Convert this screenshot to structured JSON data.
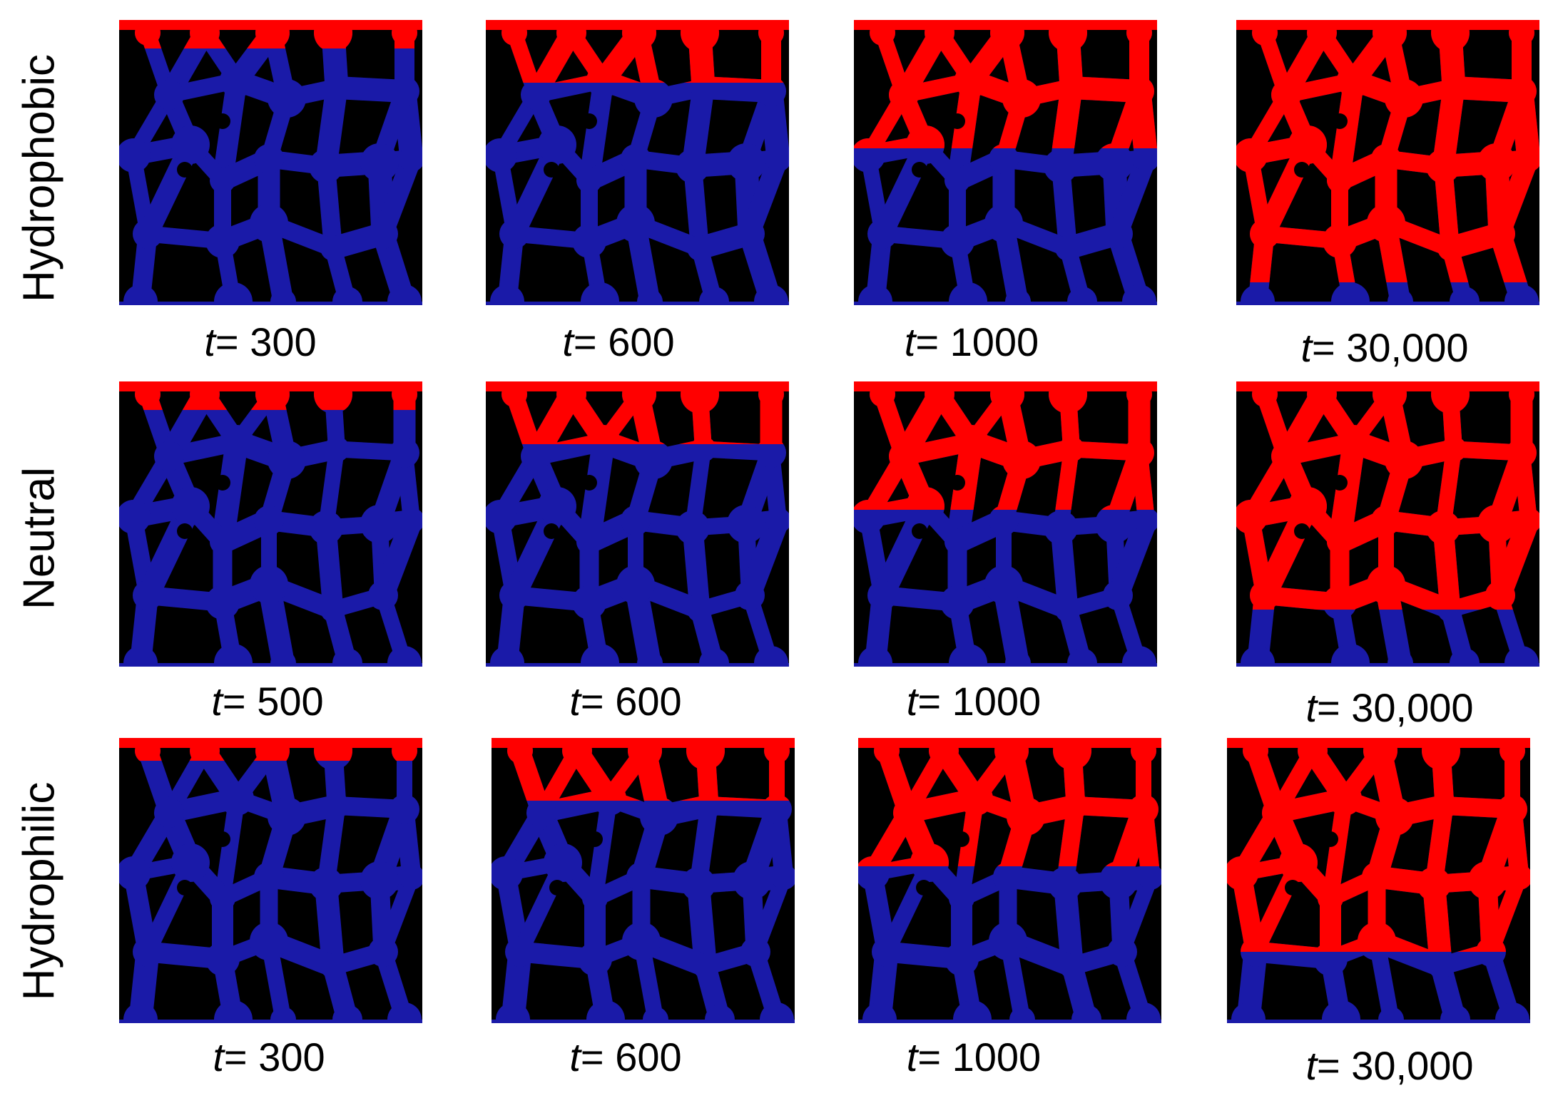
{
  "legend_colors": {
    "invading_phase": "#ff0000",
    "defending_phase": "#1a1aa8",
    "solid_grain": "#000000"
  },
  "rows": [
    {
      "label": "Hydrophobic",
      "panels": [
        {
          "t_symbol": "t",
          "t_value": "= 300",
          "red_level": 0.1
        },
        {
          "t_symbol": "t",
          "t_value": "= 600",
          "red_level": 0.22
        },
        {
          "t_symbol": "t",
          "t_value": "= 1000",
          "red_level": 0.45
        },
        {
          "t_symbol": "t",
          "t_value": "= 30,000",
          "red_level": 0.92
        }
      ]
    },
    {
      "label": "Neutral",
      "panels": [
        {
          "t_symbol": "t",
          "t_value": "= 500",
          "red_level": 0.1
        },
        {
          "t_symbol": "t",
          "t_value": "= 600",
          "red_level": 0.22
        },
        {
          "t_symbol": "t",
          "t_value": "= 1000",
          "red_level": 0.45
        },
        {
          "t_symbol": "t",
          "t_value": "= 30,000",
          "red_level": 0.8
        }
      ]
    },
    {
      "label": "Hydrophilic",
      "panels": [
        {
          "t_symbol": "t",
          "t_value": "= 300",
          "red_level": 0.08
        },
        {
          "t_symbol": "t",
          "t_value": "= 600",
          "red_level": 0.22
        },
        {
          "t_symbol": "t",
          "t_value": "= 1000",
          "red_level": 0.45
        },
        {
          "t_symbol": "t",
          "t_value": "= 30,000",
          "red_level": 0.75
        }
      ]
    }
  ]
}
